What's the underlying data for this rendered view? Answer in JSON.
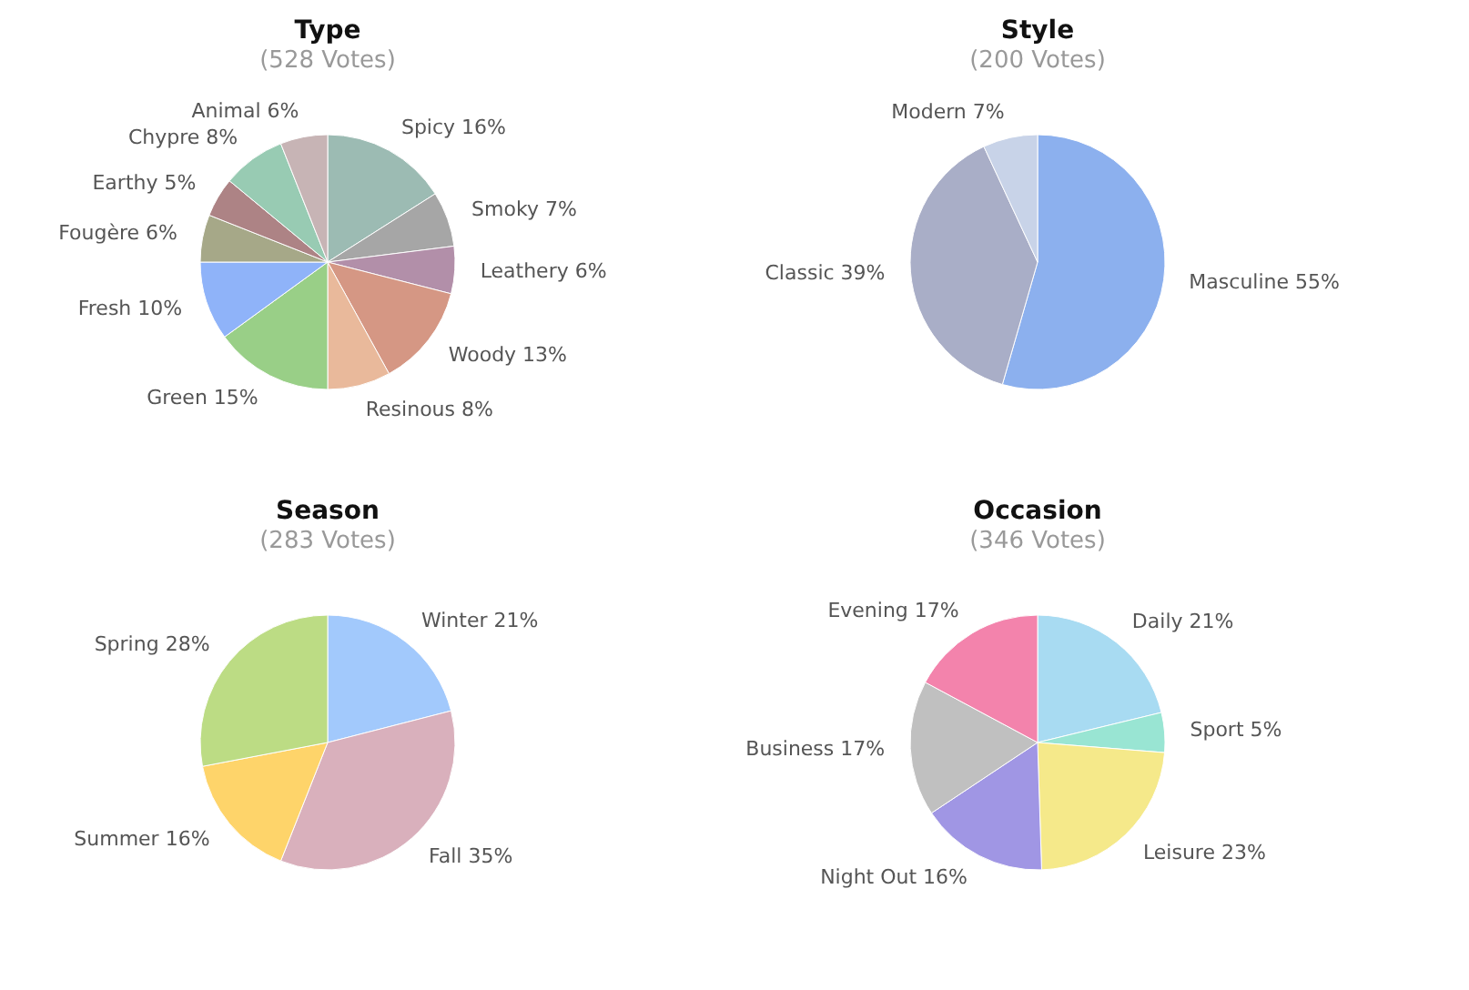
{
  "chart_data": [
    {
      "type": "pie",
      "title": "Type",
      "subtitle": "(528 Votes)",
      "categories": [
        "Spicy",
        "Smoky",
        "Leathery",
        "Woody",
        "Resinous",
        "Green",
        "Fresh",
        "Fougère",
        "Earthy",
        "Chypre",
        "Animal"
      ],
      "values": [
        16,
        7,
        6,
        13,
        8,
        15,
        10,
        6,
        5,
        8,
        6
      ],
      "value_labels": [
        "16%",
        "7%",
        "6%",
        "13%",
        "8%",
        "15%",
        "10%",
        "6%",
        "5%",
        "8%",
        "6%"
      ],
      "colors": [
        "#9cbbb3",
        "#a6a6a6",
        "#b28fa9",
        "#d59784",
        "#e9b99b",
        "#99cf87",
        "#8fb3f9",
        "#a6a888",
        "#ad8385",
        "#98cbb3",
        "#c7b4b5"
      ]
    },
    {
      "type": "pie",
      "title": "Style",
      "subtitle": "(200 Votes)",
      "categories": [
        "Masculine",
        "Classic",
        "Modern"
      ],
      "values": [
        55,
        39,
        7
      ],
      "value_labels": [
        "55%",
        "39%",
        "7%"
      ],
      "colors": [
        "#8cb0ee",
        "#a9aec7",
        "#c8d3e8"
      ]
    },
    {
      "type": "pie",
      "title": "Season",
      "subtitle": "(283 Votes)",
      "categories": [
        "Winter",
        "Fall",
        "Summer",
        "Spring"
      ],
      "values": [
        21,
        35,
        16,
        28
      ],
      "value_labels": [
        "21%",
        "35%",
        "16%",
        "28%"
      ],
      "colors": [
        "#a2c9fc",
        "#d9b0bc",
        "#fed46a",
        "#bcdc84"
      ]
    },
    {
      "type": "pie",
      "title": "Occasion",
      "subtitle": "(346 Votes)",
      "categories": [
        "Daily",
        "Sport",
        "Leisure",
        "Night Out",
        "Business",
        "Evening"
      ],
      "values": [
        21,
        5,
        23,
        16,
        17,
        17
      ],
      "value_labels": [
        "21%",
        "5%",
        "23%",
        "16%",
        "17%",
        "17%"
      ],
      "colors": [
        "#a8dbf2",
        "#99e5d3",
        "#f5e98a",
        "#a096e4",
        "#c0c0c0",
        "#f383ac"
      ]
    }
  ]
}
